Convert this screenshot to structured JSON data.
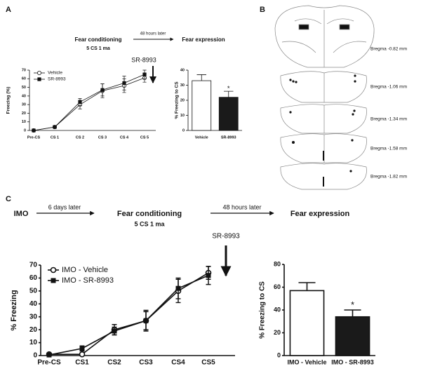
{
  "figure": {
    "panel_a": {
      "letter": "A",
      "step1": "Fear conditioning",
      "step1_detail": "5 CS 1 ma",
      "delay": "48 hours later",
      "step2": "Fear expression",
      "drug": "SR-8993"
    },
    "panel_b": {
      "letter": "B",
      "sections": [
        "Bregma -0.82 mm",
        "Bregma -1.06 mm",
        "Bregma -1.34 mm",
        "Bregma -1.58 mm",
        "Bregma -1.82 mm"
      ]
    },
    "panel_c": {
      "letter": "C",
      "start": "IMO",
      "delay1": "6 days later",
      "step1": "Fear conditioning",
      "step1_detail": "5 CS 1 ma",
      "delay2": "48 hours later",
      "step2": "Fear expression",
      "drug": "SR-8993"
    }
  },
  "chart_data": [
    {
      "type": "line",
      "y_label": "Freezing (%)",
      "categories": [
        "Pre-CS",
        "CS 1",
        "CS 2",
        "CS 3",
        "CS 4",
        "CS 5"
      ],
      "ylim": [
        0,
        70
      ],
      "yticks": [
        0,
        10,
        20,
        30,
        40,
        50,
        60,
        70
      ],
      "legend": "upper left",
      "series": [
        {
          "name": "Vehicle",
          "color": "#111111",
          "marker": "circle-open",
          "values": [
            0,
            4,
            30,
            46,
            52,
            61
          ],
          "errors": [
            0,
            1,
            5,
            8,
            8,
            5
          ]
        },
        {
          "name": "SR-8993",
          "color": "#111111",
          "marker": "square",
          "values": [
            0,
            4,
            33,
            47,
            55,
            65
          ],
          "errors": [
            0,
            1,
            4,
            7,
            8,
            5
          ]
        }
      ]
    },
    {
      "type": "bar",
      "y_label": "% Freezing to CS",
      "categories": [
        "Vehicle",
        "SR-8993"
      ],
      "values": [
        33,
        22
      ],
      "errors": [
        4,
        4
      ],
      "colors": [
        "#ffffff",
        "#1a1a1a"
      ],
      "annotation": "*",
      "ylim": [
        0,
        40
      ],
      "yticks": [
        0,
        10,
        20,
        30,
        40
      ]
    },
    {
      "type": "line",
      "y_label": "% Freezing",
      "categories": [
        "Pre-CS",
        "CS1",
        "CS2",
        "CS3",
        "CS4",
        "CS5"
      ],
      "ylim": [
        0,
        70
      ],
      "yticks": [
        0,
        10,
        20,
        30,
        40,
        50,
        60,
        70
      ],
      "legend": "upper left",
      "series": [
        {
          "name": "IMO - Vehicle",
          "color": "#111111",
          "marker": "circle-open",
          "values": [
            1,
            1,
            20,
            27,
            50,
            64
          ],
          "errors": [
            1,
            1,
            4,
            8,
            9,
            5
          ]
        },
        {
          "name": "IMO - SR-8993",
          "color": "#111111",
          "marker": "square",
          "values": [
            0.5,
            5.5,
            19,
            27,
            52,
            62
          ],
          "errors": [
            0.5,
            2,
            3,
            7,
            8,
            7
          ]
        }
      ]
    },
    {
      "type": "bar",
      "y_label": "% Freezing to CS",
      "categories": [
        "IMO - Vehicle",
        "IMO - SR-8993"
      ],
      "values": [
        57,
        34
      ],
      "errors": [
        7,
        6
      ],
      "colors": [
        "#ffffff",
        "#1a1a1a"
      ],
      "annotation": "*",
      "ylim": [
        0,
        80
      ],
      "yticks": [
        0,
        20,
        40,
        60,
        80
      ]
    }
  ]
}
